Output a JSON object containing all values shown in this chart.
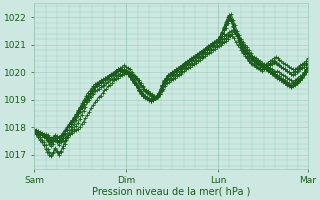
{
  "xlabel": "Pression niveau de la mer( hPa )",
  "bg_color": "#cce8e0",
  "plot_bg_color": "#cce8e0",
  "grid_color": "#99ccbb",
  "line_color": "#1a5c1a",
  "ylim": [
    1016.5,
    1022.5
  ],
  "yticks": [
    1017,
    1018,
    1019,
    1020,
    1021,
    1022
  ],
  "xtick_labels": [
    "Sam",
    "Dim",
    "Lun",
    "Mar"
  ],
  "xtick_positions": [
    0,
    48,
    96,
    143
  ],
  "total_points": 144,
  "series": [
    [
      1017.9,
      1017.85,
      1017.8,
      1017.75,
      1017.7,
      1017.65,
      1017.6,
      1017.55,
      1017.5,
      1017.45,
      1017.5,
      1017.55,
      1017.5,
      1017.45,
      1017.5,
      1017.55,
      1017.6,
      1017.65,
      1017.7,
      1017.75,
      1017.8,
      1017.85,
      1017.9,
      1017.95,
      1018.0,
      1018.1,
      1018.2,
      1018.35,
      1018.45,
      1018.55,
      1018.7,
      1018.8,
      1018.9,
      1019.0,
      1019.1,
      1019.15,
      1019.25,
      1019.35,
      1019.4,
      1019.5,
      1019.55,
      1019.6,
      1019.7,
      1019.75,
      1019.8,
      1019.85,
      1019.9,
      1019.95,
      1020.0,
      1020.05,
      1020.0,
      1019.95,
      1019.9,
      1019.85,
      1019.8,
      1019.7,
      1019.6,
      1019.5,
      1019.4,
      1019.35,
      1019.3,
      1019.25,
      1019.2,
      1019.15,
      1019.1,
      1019.15,
      1019.2,
      1019.3,
      1019.4,
      1019.5,
      1019.6,
      1019.65,
      1019.7,
      1019.75,
      1019.8,
      1019.85,
      1019.9,
      1019.95,
      1020.0,
      1020.05,
      1020.1,
      1020.15,
      1020.2,
      1020.25,
      1020.3,
      1020.35,
      1020.4,
      1020.45,
      1020.5,
      1020.55,
      1020.6,
      1020.65,
      1020.7,
      1020.75,
      1020.8,
      1020.85,
      1020.9,
      1020.95,
      1021.0,
      1021.05,
      1021.1,
      1021.15,
      1021.2,
      1021.3,
      1021.4,
      1021.45,
      1021.4,
      1021.35,
      1021.2,
      1021.1,
      1021.0,
      1020.9,
      1020.8,
      1020.7,
      1020.6,
      1020.5,
      1020.4,
      1020.35,
      1020.3,
      1020.25,
      1020.2,
      1020.25,
      1020.3,
      1020.35,
      1020.4,
      1020.45,
      1020.5,
      1020.55,
      1020.5,
      1020.45,
      1020.4,
      1020.35,
      1020.3,
      1020.25,
      1020.2,
      1020.15,
      1020.1,
      1020.1,
      1020.15,
      1020.2,
      1020.25,
      1020.3,
      1020.35,
      1020.4,
      1020.5
    ],
    [
      1017.85,
      1017.75,
      1017.65,
      1017.55,
      1017.45,
      1017.35,
      1017.2,
      1017.1,
      1017.0,
      1016.95,
      1017.05,
      1017.2,
      1017.1,
      1017.0,
      1017.1,
      1017.25,
      1017.4,
      1017.55,
      1017.65,
      1017.75,
      1017.85,
      1017.95,
      1018.05,
      1018.15,
      1018.3,
      1018.45,
      1018.6,
      1018.75,
      1018.9,
      1019.0,
      1019.1,
      1019.2,
      1019.3,
      1019.35,
      1019.4,
      1019.45,
      1019.5,
      1019.55,
      1019.6,
      1019.65,
      1019.7,
      1019.75,
      1019.8,
      1019.85,
      1019.9,
      1019.95,
      1020.0,
      1020.05,
      1020.05,
      1020.0,
      1019.95,
      1019.9,
      1019.85,
      1019.8,
      1019.75,
      1019.65,
      1019.55,
      1019.45,
      1019.35,
      1019.3,
      1019.25,
      1019.2,
      1019.15,
      1019.1,
      1019.05,
      1019.1,
      1019.2,
      1019.35,
      1019.5,
      1019.6,
      1019.7,
      1019.75,
      1019.8,
      1019.85,
      1019.9,
      1019.95,
      1020.0,
      1020.05,
      1020.1,
      1020.15,
      1020.2,
      1020.25,
      1020.3,
      1020.35,
      1020.4,
      1020.45,
      1020.5,
      1020.55,
      1020.6,
      1020.65,
      1020.7,
      1020.75,
      1020.8,
      1020.85,
      1020.9,
      1020.95,
      1021.0,
      1021.05,
      1021.1,
      1021.15,
      1021.2,
      1021.25,
      1021.3,
      1021.35,
      1021.3,
      1021.25,
      1021.1,
      1021.0,
      1020.9,
      1020.8,
      1020.7,
      1020.6,
      1020.5,
      1020.4,
      1020.35,
      1020.3,
      1020.25,
      1020.2,
      1020.15,
      1020.1,
      1020.1,
      1020.15,
      1020.2,
      1020.25,
      1020.3,
      1020.35,
      1020.4,
      1020.35,
      1020.3,
      1020.25,
      1020.2,
      1020.15,
      1020.1,
      1020.05,
      1020.0,
      1019.95,
      1020.0,
      1020.05,
      1020.1,
      1020.15,
      1020.2,
      1020.25,
      1020.3,
      1020.35,
      1020.4
    ],
    [
      1017.8,
      1017.75,
      1017.7,
      1017.65,
      1017.55,
      1017.45,
      1017.35,
      1017.2,
      1017.1,
      1017.0,
      1017.1,
      1017.25,
      1017.15,
      1017.05,
      1017.15,
      1017.3,
      1017.5,
      1017.65,
      1017.8,
      1017.9,
      1018.0,
      1018.1,
      1018.25,
      1018.4,
      1018.55,
      1018.7,
      1018.85,
      1018.95,
      1019.05,
      1019.15,
      1019.25,
      1019.35,
      1019.45,
      1019.5,
      1019.55,
      1019.6,
      1019.65,
      1019.7,
      1019.75,
      1019.8,
      1019.85,
      1019.9,
      1019.95,
      1020.0,
      1020.05,
      1020.1,
      1020.05,
      1020.1,
      1020.0,
      1019.95,
      1019.85,
      1019.75,
      1019.65,
      1019.55,
      1019.45,
      1019.35,
      1019.25,
      1019.15,
      1019.1,
      1019.05,
      1019.0,
      1018.95,
      1019.0,
      1019.05,
      1019.1,
      1019.2,
      1019.35,
      1019.5,
      1019.65,
      1019.75,
      1019.85,
      1019.9,
      1019.95,
      1020.0,
      1020.05,
      1020.1,
      1020.15,
      1020.2,
      1020.25,
      1020.3,
      1020.35,
      1020.4,
      1020.45,
      1020.5,
      1020.55,
      1020.6,
      1020.65,
      1020.7,
      1020.75,
      1020.8,
      1020.85,
      1020.9,
      1020.95,
      1021.0,
      1021.05,
      1021.1,
      1021.15,
      1021.2,
      1021.25,
      1021.3,
      1021.35,
      1021.4,
      1021.45,
      1021.5,
      1021.55,
      1021.5,
      1021.3,
      1021.1,
      1020.9,
      1020.75,
      1020.65,
      1020.55,
      1020.45,
      1020.35,
      1020.3,
      1020.25,
      1020.2,
      1020.15,
      1020.1,
      1020.05,
      1020.1,
      1020.15,
      1020.2,
      1020.25,
      1020.3,
      1020.35,
      1020.4,
      1020.3,
      1020.25,
      1020.2,
      1020.15,
      1020.1,
      1020.05,
      1020.0,
      1019.95,
      1019.9,
      1019.95,
      1020.0,
      1020.05,
      1020.1,
      1020.15,
      1020.2,
      1020.25,
      1020.3
    ],
    [
      1017.95,
      1017.9,
      1017.85,
      1017.8,
      1017.75,
      1017.7,
      1017.65,
      1017.6,
      1017.55,
      1017.5,
      1017.55,
      1017.6,
      1017.55,
      1017.5,
      1017.6,
      1017.7,
      1017.8,
      1017.9,
      1018.0,
      1018.1,
      1018.2,
      1018.3,
      1018.4,
      1018.5,
      1018.6,
      1018.75,
      1018.85,
      1019.0,
      1019.1,
      1019.2,
      1019.3,
      1019.4,
      1019.5,
      1019.55,
      1019.6,
      1019.65,
      1019.7,
      1019.75,
      1019.8,
      1019.85,
      1019.9,
      1019.95,
      1020.0,
      1020.05,
      1020.1,
      1020.15,
      1020.2,
      1020.25,
      1020.2,
      1020.15,
      1020.1,
      1020.0,
      1019.9,
      1019.8,
      1019.7,
      1019.6,
      1019.5,
      1019.4,
      1019.3,
      1019.25,
      1019.2,
      1019.15,
      1019.1,
      1019.05,
      1019.1,
      1019.2,
      1019.35,
      1019.5,
      1019.65,
      1019.75,
      1019.85,
      1019.9,
      1019.95,
      1020.0,
      1020.05,
      1020.1,
      1020.15,
      1020.2,
      1020.25,
      1020.3,
      1020.35,
      1020.4,
      1020.45,
      1020.5,
      1020.55,
      1020.6,
      1020.65,
      1020.7,
      1020.75,
      1020.8,
      1020.85,
      1020.9,
      1020.95,
      1021.0,
      1021.05,
      1021.1,
      1021.15,
      1021.2,
      1021.3,
      1021.4,
      1021.6,
      1021.8,
      1022.0,
      1022.1,
      1021.9,
      1021.7,
      1021.5,
      1021.35,
      1021.2,
      1021.1,
      1021.0,
      1020.9,
      1020.8,
      1020.7,
      1020.6,
      1020.55,
      1020.5,
      1020.45,
      1020.4,
      1020.35,
      1020.3,
      1020.25,
      1020.2,
      1020.15,
      1020.1,
      1020.05,
      1020.0,
      1020.05,
      1020.0,
      1019.95,
      1019.9,
      1019.85,
      1019.8,
      1019.75,
      1019.7,
      1019.65,
      1019.7,
      1019.75,
      1019.8,
      1019.85,
      1019.9,
      1020.0,
      1020.1,
      1020.2
    ],
    [
      1017.85,
      1017.82,
      1017.79,
      1017.76,
      1017.73,
      1017.7,
      1017.67,
      1017.64,
      1017.61,
      1017.58,
      1017.62,
      1017.68,
      1017.65,
      1017.6,
      1017.68,
      1017.77,
      1017.86,
      1017.95,
      1018.04,
      1018.13,
      1018.22,
      1018.31,
      1018.43,
      1018.55,
      1018.67,
      1018.79,
      1018.91,
      1019.03,
      1019.15,
      1019.22,
      1019.32,
      1019.4,
      1019.5,
      1019.55,
      1019.6,
      1019.65,
      1019.7,
      1019.75,
      1019.8,
      1019.85,
      1019.9,
      1019.95,
      1020.0,
      1020.05,
      1020.1,
      1020.12,
      1020.1,
      1020.08,
      1020.05,
      1020.0,
      1019.9,
      1019.8,
      1019.7,
      1019.6,
      1019.5,
      1019.4,
      1019.3,
      1019.2,
      1019.15,
      1019.1,
      1019.05,
      1019.0,
      1019.05,
      1019.1,
      1019.15,
      1019.25,
      1019.4,
      1019.55,
      1019.7,
      1019.8,
      1019.9,
      1019.95,
      1020.0,
      1020.05,
      1020.1,
      1020.15,
      1020.2,
      1020.25,
      1020.3,
      1020.35,
      1020.4,
      1020.45,
      1020.5,
      1020.55,
      1020.6,
      1020.65,
      1020.7,
      1020.75,
      1020.8,
      1020.85,
      1020.9,
      1020.95,
      1021.0,
      1021.05,
      1021.1,
      1021.15,
      1021.2,
      1021.3,
      1021.45,
      1021.6,
      1021.75,
      1021.9,
      1022.05,
      1021.95,
      1021.75,
      1021.55,
      1021.4,
      1021.25,
      1021.1,
      1021.0,
      1020.9,
      1020.8,
      1020.7,
      1020.6,
      1020.55,
      1020.5,
      1020.45,
      1020.4,
      1020.35,
      1020.3,
      1020.25,
      1020.2,
      1020.15,
      1020.1,
      1020.05,
      1020.0,
      1019.95,
      1019.9,
      1019.85,
      1019.8,
      1019.75,
      1019.7,
      1019.65,
      1019.6,
      1019.55,
      1019.6,
      1019.65,
      1019.7,
      1019.75,
      1019.8,
      1019.9,
      1020.0,
      1020.1,
      1020.2
    ],
    [
      1017.82,
      1017.79,
      1017.76,
      1017.73,
      1017.7,
      1017.67,
      1017.6,
      1017.5,
      1017.4,
      1017.3,
      1017.4,
      1017.55,
      1017.45,
      1017.35,
      1017.45,
      1017.6,
      1017.75,
      1017.9,
      1018.05,
      1018.15,
      1018.25,
      1018.35,
      1018.48,
      1018.61,
      1018.74,
      1018.87,
      1019.0,
      1019.13,
      1019.25,
      1019.32,
      1019.42,
      1019.5,
      1019.58,
      1019.62,
      1019.66,
      1019.7,
      1019.74,
      1019.78,
      1019.82,
      1019.86,
      1019.9,
      1019.94,
      1019.98,
      1020.02,
      1020.05,
      1020.08,
      1020.05,
      1020.02,
      1019.98,
      1019.92,
      1019.82,
      1019.72,
      1019.62,
      1019.52,
      1019.42,
      1019.32,
      1019.22,
      1019.12,
      1019.08,
      1019.04,
      1019.0,
      1018.96,
      1019.02,
      1019.08,
      1019.14,
      1019.24,
      1019.39,
      1019.54,
      1019.69,
      1019.79,
      1019.89,
      1019.94,
      1019.99,
      1020.04,
      1020.09,
      1020.14,
      1020.19,
      1020.24,
      1020.29,
      1020.34,
      1020.39,
      1020.44,
      1020.49,
      1020.54,
      1020.59,
      1020.64,
      1020.69,
      1020.74,
      1020.79,
      1020.84,
      1020.89,
      1020.94,
      1020.99,
      1021.04,
      1021.09,
      1021.14,
      1021.19,
      1021.29,
      1021.44,
      1021.64,
      1021.84,
      1021.99,
      1022.09,
      1021.89,
      1021.69,
      1021.49,
      1021.34,
      1021.19,
      1021.04,
      1020.89,
      1020.79,
      1020.69,
      1020.59,
      1020.54,
      1020.49,
      1020.44,
      1020.39,
      1020.34,
      1020.29,
      1020.24,
      1020.19,
      1020.14,
      1020.09,
      1020.04,
      1019.99,
      1019.94,
      1019.89,
      1019.84,
      1019.79,
      1019.74,
      1019.69,
      1019.64,
      1019.59,
      1019.54,
      1019.49,
      1019.54,
      1019.59,
      1019.64,
      1019.69,
      1019.74,
      1019.84,
      1019.94,
      1020.04,
      1020.14
    ],
    [
      1017.9,
      1017.88,
      1017.86,
      1017.83,
      1017.8,
      1017.77,
      1017.74,
      1017.7,
      1017.65,
      1017.6,
      1017.65,
      1017.72,
      1017.68,
      1017.63,
      1017.7,
      1017.8,
      1017.9,
      1018.0,
      1018.1,
      1018.18,
      1018.27,
      1018.36,
      1018.47,
      1018.58,
      1018.69,
      1018.8,
      1018.92,
      1019.03,
      1019.14,
      1019.22,
      1019.31,
      1019.4,
      1019.5,
      1019.57,
      1019.63,
      1019.68,
      1019.73,
      1019.78,
      1019.83,
      1019.88,
      1019.93,
      1019.97,
      1020.02,
      1020.06,
      1020.1,
      1020.13,
      1020.1,
      1020.07,
      1020.03,
      1019.97,
      1019.87,
      1019.77,
      1019.67,
      1019.57,
      1019.47,
      1019.37,
      1019.27,
      1019.17,
      1019.12,
      1019.07,
      1019.02,
      1018.97,
      1019.02,
      1019.07,
      1019.12,
      1019.22,
      1019.37,
      1019.52,
      1019.67,
      1019.77,
      1019.87,
      1019.92,
      1019.97,
      1020.02,
      1020.07,
      1020.12,
      1020.17,
      1020.22,
      1020.27,
      1020.32,
      1020.37,
      1020.42,
      1020.47,
      1020.52,
      1020.57,
      1020.62,
      1020.67,
      1020.72,
      1020.77,
      1020.82,
      1020.87,
      1020.92,
      1020.97,
      1021.02,
      1021.07,
      1021.12,
      1021.17,
      1021.27,
      1021.42,
      1021.57,
      1021.72,
      1021.87,
      1021.97,
      1021.87,
      1021.67,
      1021.47,
      1021.32,
      1021.17,
      1021.02,
      1020.87,
      1020.77,
      1020.67,
      1020.57,
      1020.52,
      1020.47,
      1020.42,
      1020.37,
      1020.32,
      1020.27,
      1020.22,
      1020.17,
      1020.12,
      1020.07,
      1020.02,
      1019.97,
      1019.92,
      1019.87,
      1019.82,
      1019.77,
      1019.72,
      1019.67,
      1019.62,
      1019.57,
      1019.52,
      1019.47,
      1019.52,
      1019.57,
      1019.62,
      1019.67,
      1019.72,
      1019.82,
      1019.92,
      1020.02,
      1020.12
    ],
    [
      1017.8,
      1017.78,
      1017.76,
      1017.74,
      1017.72,
      1017.7,
      1017.66,
      1017.6,
      1017.52,
      1017.44,
      1017.52,
      1017.62,
      1017.55,
      1017.47,
      1017.55,
      1017.67,
      1017.79,
      1017.91,
      1018.03,
      1018.12,
      1018.21,
      1018.3,
      1018.42,
      1018.54,
      1018.66,
      1018.78,
      1018.9,
      1019.02,
      1019.14,
      1019.22,
      1019.3,
      1019.39,
      1019.48,
      1019.54,
      1019.6,
      1019.65,
      1019.7,
      1019.75,
      1019.8,
      1019.85,
      1019.9,
      1019.94,
      1019.98,
      1020.02,
      1020.06,
      1020.1,
      1020.08,
      1020.05,
      1020.01,
      1019.95,
      1019.85,
      1019.75,
      1019.65,
      1019.55,
      1019.45,
      1019.35,
      1019.25,
      1019.15,
      1019.1,
      1019.05,
      1019.0,
      1018.95,
      1019.0,
      1019.05,
      1019.1,
      1019.2,
      1019.35,
      1019.5,
      1019.65,
      1019.75,
      1019.85,
      1019.9,
      1019.95,
      1020.0,
      1020.05,
      1020.1,
      1020.15,
      1020.2,
      1020.25,
      1020.3,
      1020.35,
      1020.4,
      1020.45,
      1020.5,
      1020.55,
      1020.6,
      1020.65,
      1020.7,
      1020.75,
      1020.8,
      1020.85,
      1020.9,
      1020.95,
      1021.0,
      1021.05,
      1021.1,
      1021.15,
      1021.25,
      1021.4,
      1021.55,
      1021.7,
      1021.85,
      1021.95,
      1021.85,
      1021.65,
      1021.45,
      1021.3,
      1021.15,
      1021.0,
      1020.85,
      1020.75,
      1020.65,
      1020.55,
      1020.5,
      1020.45,
      1020.4,
      1020.35,
      1020.3,
      1020.25,
      1020.2,
      1020.15,
      1020.1,
      1020.05,
      1020.0,
      1019.95,
      1019.9,
      1019.85,
      1019.8,
      1019.75,
      1019.7,
      1019.65,
      1019.6,
      1019.55,
      1019.5,
      1019.45,
      1019.5,
      1019.55,
      1019.6,
      1019.65,
      1019.7,
      1019.8,
      1019.9,
      1020.0,
      1020.1
    ]
  ]
}
